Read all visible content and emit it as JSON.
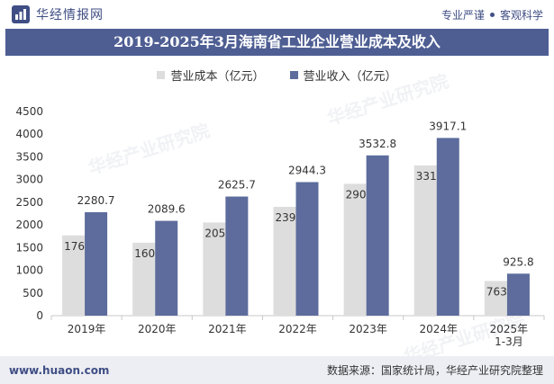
{
  "header": {
    "brand_name": "华经情报网",
    "slogan_left": "专业严谨",
    "slogan_right": "客观科学"
  },
  "footer": {
    "url": "www.huaon.com",
    "source": "数据来源：国家统计局，华经产业研究院整理"
  },
  "watermark": "华经产业研究院",
  "colors": {
    "cost": "#dddddd",
    "revenue": "#5d6c9c",
    "title_bg": "#4e5e93",
    "brand": "#3f4e84"
  },
  "chart_data": {
    "type": "bar",
    "title": "2019-2025年3月海南省工业企业营业成本及收入",
    "categories": [
      "2019年",
      "2020年",
      "2021年",
      "2022年",
      "2023年",
      "2024年",
      "2025年\n1-3月"
    ],
    "series": [
      {
        "name": "营业成本（亿元）",
        "values": [
          1769,
          1607.4,
          2052.8,
          2399.3,
          2907.1,
          3312.7,
          763.6
        ]
      },
      {
        "name": "营业收入（亿元）",
        "values": [
          2280.7,
          2089.6,
          2625.7,
          2944.3,
          3532.8,
          3917.1,
          925.8
        ]
      }
    ],
    "ylim": [
      0,
      4500
    ],
    "yticks": [
      0,
      500,
      1000,
      1500,
      2000,
      2500,
      3000,
      3500,
      4000,
      4500
    ],
    "xlabel": "",
    "ylabel": "",
    "legend_position": "top-center",
    "grid": false
  }
}
